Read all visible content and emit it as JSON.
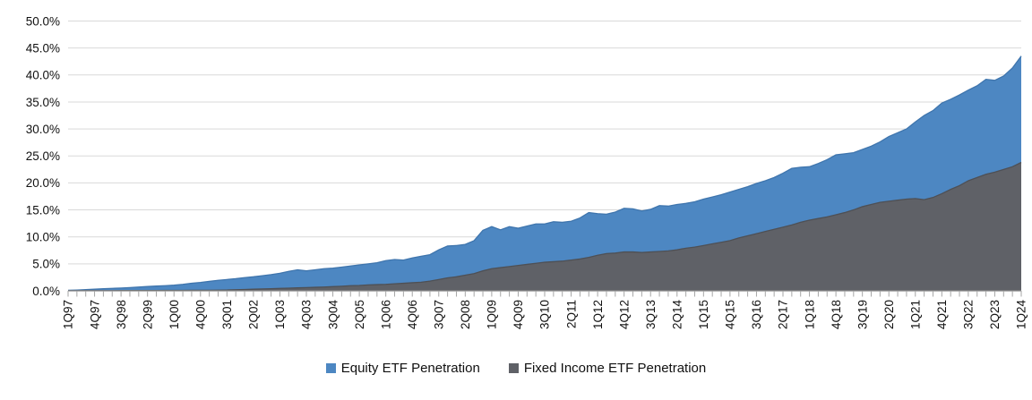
{
  "chart_data": {
    "type": "area",
    "title": "",
    "stacking": "overlap",
    "grid": true,
    "legend_position": "bottom",
    "ylim": [
      0,
      50
    ],
    "y_ticks": [
      "0.0%",
      "5.0%",
      "10.0%",
      "15.0%",
      "20.0%",
      "25.0%",
      "30.0%",
      "35.0%",
      "40.0%",
      "45.0%",
      "50.0%"
    ],
    "x_tick_label_every": 3,
    "x_tick_labels_shown": [
      "1Q97",
      "4Q97",
      "3Q98",
      "2Q99",
      "1Q00",
      "4Q00",
      "3Q01",
      "2Q02",
      "1Q03",
      "4Q03",
      "3Q04",
      "2Q05",
      "1Q06",
      "4Q06",
      "3Q07",
      "2Q08",
      "1Q09",
      "4Q09",
      "3Q10",
      "2Q11",
      "1Q12",
      "4Q12",
      "3Q13",
      "2Q14",
      "1Q15",
      "4Q15",
      "3Q16",
      "2Q17",
      "1Q18",
      "4Q18",
      "3Q19",
      "2Q20",
      "1Q21",
      "4Q21",
      "3Q22",
      "2Q23",
      "1Q24"
    ],
    "categories": [
      "1Q97",
      "2Q97",
      "3Q97",
      "4Q97",
      "1Q98",
      "2Q98",
      "3Q98",
      "4Q98",
      "1Q99",
      "2Q99",
      "3Q99",
      "4Q99",
      "1Q00",
      "2Q00",
      "3Q00",
      "4Q00",
      "1Q01",
      "2Q01",
      "3Q01",
      "4Q01",
      "1Q02",
      "2Q02",
      "3Q02",
      "4Q02",
      "1Q03",
      "2Q03",
      "3Q03",
      "4Q03",
      "1Q04",
      "2Q04",
      "3Q04",
      "4Q04",
      "1Q05",
      "2Q05",
      "3Q05",
      "4Q05",
      "1Q06",
      "2Q06",
      "3Q06",
      "4Q06",
      "1Q07",
      "2Q07",
      "3Q07",
      "4Q07",
      "1Q08",
      "2Q08",
      "3Q08",
      "4Q08",
      "1Q09",
      "2Q09",
      "3Q09",
      "4Q09",
      "1Q10",
      "2Q10",
      "3Q10",
      "4Q10",
      "1Q11",
      "2Q11",
      "3Q11",
      "4Q11",
      "1Q12",
      "2Q12",
      "3Q12",
      "4Q12",
      "1Q13",
      "2Q13",
      "3Q13",
      "4Q13",
      "1Q14",
      "2Q14",
      "3Q14",
      "4Q14",
      "1Q15",
      "2Q15",
      "3Q15",
      "4Q15",
      "1Q16",
      "2Q16",
      "3Q16",
      "4Q16",
      "1Q17",
      "2Q17",
      "3Q17",
      "4Q17",
      "1Q18",
      "2Q18",
      "3Q18",
      "4Q18",
      "1Q19",
      "2Q19",
      "3Q19",
      "4Q19",
      "1Q20",
      "2Q20",
      "3Q20",
      "4Q20",
      "1Q21",
      "2Q21",
      "3Q21",
      "4Q21",
      "1Q22",
      "2Q22",
      "3Q22",
      "4Q22",
      "1Q23",
      "2Q23",
      "3Q23",
      "4Q23",
      "1Q24"
    ],
    "series": [
      {
        "name": "Equity ETF Penetration",
        "color": "#4d87c2",
        "edge_color": "#3f75ad",
        "values": [
          0.1,
          0.15,
          0.22,
          0.3,
          0.38,
          0.45,
          0.52,
          0.6,
          0.7,
          0.8,
          0.88,
          0.95,
          1.05,
          1.2,
          1.4,
          1.55,
          1.75,
          1.95,
          2.1,
          2.25,
          2.45,
          2.6,
          2.8,
          3.0,
          3.25,
          3.6,
          3.9,
          3.7,
          3.9,
          4.1,
          4.2,
          4.4,
          4.6,
          4.8,
          5.0,
          5.2,
          5.6,
          5.8,
          5.7,
          6.1,
          6.4,
          6.7,
          7.6,
          8.3,
          8.4,
          8.6,
          9.3,
          11.2,
          11.9,
          11.3,
          11.9,
          11.6,
          12.0,
          12.4,
          12.4,
          12.8,
          12.7,
          12.9,
          13.5,
          14.5,
          14.3,
          14.2,
          14.6,
          15.3,
          15.2,
          14.8,
          15.1,
          15.8,
          15.7,
          16.0,
          16.2,
          16.5,
          17.0,
          17.4,
          17.8,
          18.3,
          18.8,
          19.3,
          19.9,
          20.4,
          21.0,
          21.8,
          22.7,
          22.9,
          23.0,
          23.6,
          24.3,
          25.2,
          25.4,
          25.6,
          26.2,
          26.8,
          27.6,
          28.6,
          29.3,
          30.0,
          31.3,
          32.5,
          33.4,
          34.8,
          35.5,
          36.3,
          37.2,
          38.0,
          39.2,
          39.0,
          39.8,
          41.3,
          43.5
        ]
      },
      {
        "name": "Fixed Income ETF Penetration",
        "color": "#5f6167",
        "edge_color": "#4e5055",
        "values": [
          0.02,
          0.02,
          0.03,
          0.03,
          0.04,
          0.04,
          0.05,
          0.05,
          0.05,
          0.06,
          0.06,
          0.07,
          0.08,
          0.08,
          0.09,
          0.1,
          0.1,
          0.12,
          0.15,
          0.2,
          0.25,
          0.3,
          0.35,
          0.4,
          0.45,
          0.5,
          0.55,
          0.6,
          0.65,
          0.7,
          0.78,
          0.85,
          0.95,
          1.0,
          1.1,
          1.15,
          1.2,
          1.3,
          1.4,
          1.5,
          1.6,
          1.8,
          2.1,
          2.4,
          2.6,
          2.9,
          3.2,
          3.7,
          4.1,
          4.3,
          4.5,
          4.7,
          4.9,
          5.1,
          5.3,
          5.4,
          5.5,
          5.7,
          5.9,
          6.2,
          6.6,
          6.9,
          7.0,
          7.2,
          7.2,
          7.1,
          7.2,
          7.3,
          7.4,
          7.6,
          7.9,
          8.1,
          8.4,
          8.7,
          9.0,
          9.3,
          9.8,
          10.2,
          10.6,
          11.0,
          11.4,
          11.8,
          12.2,
          12.7,
          13.1,
          13.4,
          13.7,
          14.1,
          14.5,
          15.0,
          15.6,
          16.0,
          16.4,
          16.6,
          16.8,
          17.0,
          17.1,
          16.9,
          17.3,
          18.0,
          18.8,
          19.5,
          20.4,
          21.0,
          21.6,
          22.0,
          22.5,
          23.0,
          23.8
        ]
      }
    ]
  }
}
